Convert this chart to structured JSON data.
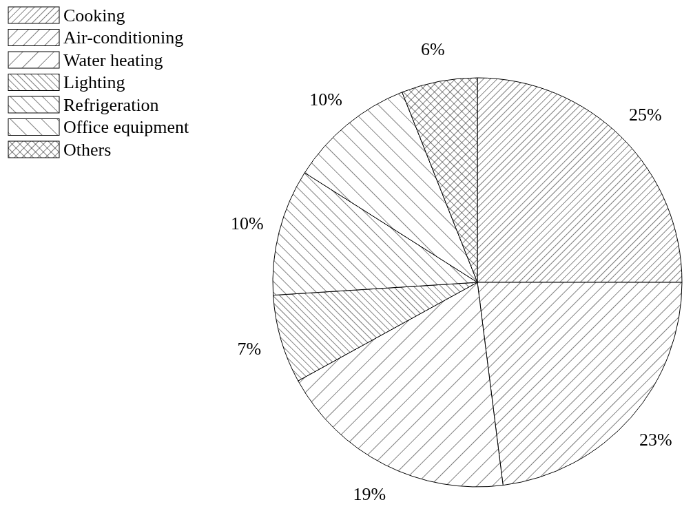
{
  "chart_data": {
    "type": "pie",
    "categories": [
      "Cooking",
      "Air-conditioning",
      "Water heating",
      "Lighting",
      "Refrigeration",
      "Office equipment",
      "Others"
    ],
    "values": [
      25,
      23,
      19,
      7,
      10,
      10,
      6
    ],
    "colors": [
      "#ffffff",
      "#ffffff",
      "#ffffff",
      "#ffffff",
      "#ffffff",
      "#ffffff",
      "#ffffff"
    ],
    "value_labels": [
      "25%",
      "23%",
      "19%",
      "7%",
      "10%",
      "10%",
      "6%"
    ],
    "legend": "top left"
  }
}
